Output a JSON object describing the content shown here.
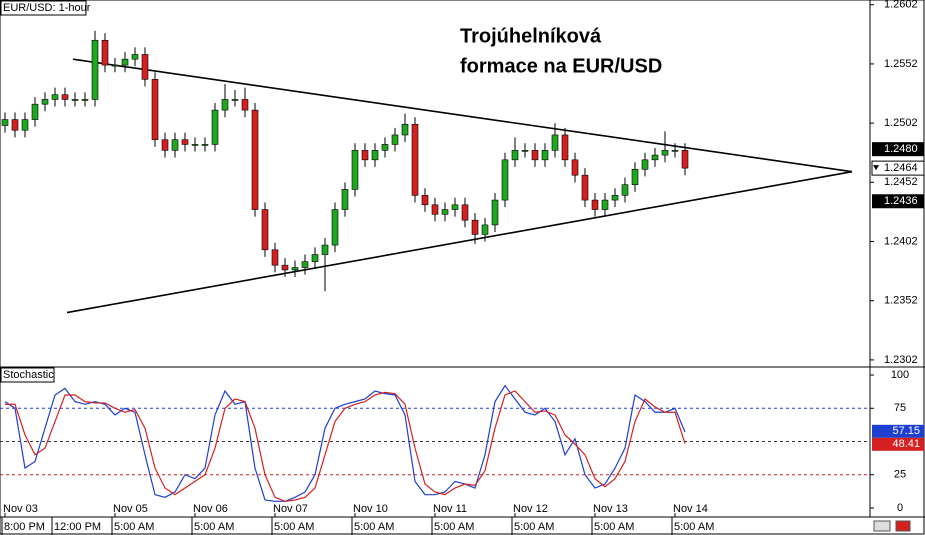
{
  "chart_data": [
    {
      "type": "candlestick",
      "title": "EUR/USD: 1-hour",
      "annotation": [
        "Trojúhelníková",
        "formace na EUR/USD"
      ],
      "xlim": [
        -0.5,
        86.5
      ],
      "ylim": [
        1.2296,
        1.2606
      ],
      "yticks": [
        1.2602,
        1.2552,
        1.2502,
        1.2452,
        1.2402,
        1.2352,
        1.2302
      ],
      "price_labels": [
        {
          "value": 1.248,
          "label": "1.2480"
        },
        {
          "value": 1.2436,
          "label": "1.2436"
        }
      ],
      "up_color": "#1fa81f",
      "down_color": "#d42020",
      "trendline_color": "#000000",
      "trendlines": [
        {
          "x": [
            6.8,
            84.7
          ],
          "y": [
            1.2556,
            1.2461
          ]
        },
        {
          "x": [
            6.2,
            84.7
          ],
          "y": [
            1.2342,
            1.2461
          ]
        }
      ],
      "open": [
        1.25,
        1.2505,
        1.2496,
        1.2505,
        1.2518,
        1.2522,
        1.2526,
        1.2522,
        1.2522,
        1.2522,
        1.2572,
        1.2551,
        1.2551,
        1.2556,
        1.256,
        1.2539,
        1.2488,
        1.2479,
        1.2488,
        1.2484,
        1.2484,
        1.2484,
        1.2513,
        1.2522,
        1.2522,
        1.2513,
        1.2429,
        1.2395,
        1.2382,
        1.2378,
        1.238,
        1.2385,
        1.2391,
        1.2399,
        1.2429,
        1.2446,
        1.2479,
        1.2471,
        1.2479,
        1.2484,
        1.2492,
        1.2501,
        1.2441,
        1.2433,
        1.2425,
        1.2429,
        1.2433,
        1.242,
        1.2408,
        1.2416,
        1.2437,
        1.2471,
        1.2479,
        1.2479,
        1.2471,
        1.2479,
        1.2492,
        1.2471,
        1.2458,
        1.2437,
        1.2429,
        1.2437,
        1.2441,
        1.245,
        1.2463,
        1.2471,
        1.2475,
        1.2479,
        1.2479
      ],
      "high": [
        1.2511,
        1.2511,
        1.2511,
        1.2524,
        1.2528,
        1.2532,
        1.2532,
        1.2528,
        1.2528,
        1.258,
        1.2578,
        1.2557,
        1.2562,
        1.2566,
        1.2566,
        1.2545,
        1.2494,
        1.2494,
        1.2494,
        1.249,
        1.249,
        1.2519,
        1.2535,
        1.253,
        1.2532,
        1.2519,
        1.2435,
        1.2401,
        1.2388,
        1.2386,
        1.2391,
        1.2397,
        1.2405,
        1.2435,
        1.2452,
        1.2485,
        1.2485,
        1.2485,
        1.249,
        1.2498,
        1.251,
        1.2507,
        1.2447,
        1.2439,
        1.2435,
        1.2439,
        1.2439,
        1.2426,
        1.2422,
        1.2443,
        1.2477,
        1.249,
        1.2485,
        1.2485,
        1.2485,
        1.2502,
        1.2498,
        1.2477,
        1.2464,
        1.2443,
        1.2443,
        1.2447,
        1.2456,
        1.2469,
        1.2477,
        1.2481,
        1.2495,
        1.2485,
        1.2485
      ],
      "low": [
        1.2494,
        1.249,
        1.249,
        1.2499,
        1.2512,
        1.2516,
        1.2516,
        1.2516,
        1.2516,
        1.2516,
        1.2545,
        1.2545,
        1.2545,
        1.255,
        1.2533,
        1.2482,
        1.2473,
        1.2473,
        1.2478,
        1.2478,
        1.2478,
        1.2478,
        1.2507,
        1.2516,
        1.2507,
        1.2423,
        1.2389,
        1.2376,
        1.2372,
        1.2372,
        1.2374,
        1.2379,
        1.236,
        1.2393,
        1.2423,
        1.244,
        1.2465,
        1.2465,
        1.2473,
        1.2478,
        1.2486,
        1.2435,
        1.2427,
        1.2419,
        1.2419,
        1.2423,
        1.2414,
        1.24,
        1.2402,
        1.241,
        1.2431,
        1.2465,
        1.2473,
        1.2465,
        1.2465,
        1.2473,
        1.2465,
        1.2452,
        1.2431,
        1.2423,
        1.2423,
        1.2431,
        1.2435,
        1.2444,
        1.2457,
        1.2465,
        1.2469,
        1.2473,
        1.2458
      ],
      "close": [
        1.2505,
        1.2496,
        1.2505,
        1.2518,
        1.2522,
        1.2526,
        1.2522,
        1.2522,
        1.2522,
        1.2572,
        1.2551,
        1.2551,
        1.2556,
        1.256,
        1.2539,
        1.2488,
        1.2479,
        1.2488,
        1.2484,
        1.2484,
        1.2484,
        1.2513,
        1.2522,
        1.2522,
        1.2513,
        1.2429,
        1.2395,
        1.2382,
        1.2378,
        1.238,
        1.2385,
        1.2391,
        1.2399,
        1.2429,
        1.2446,
        1.2479,
        1.2471,
        1.2479,
        1.2484,
        1.2492,
        1.2501,
        1.2441,
        1.2433,
        1.2425,
        1.2429,
        1.2433,
        1.242,
        1.2408,
        1.2416,
        1.2437,
        1.2471,
        1.2479,
        1.2479,
        1.2471,
        1.2479,
        1.2492,
        1.2471,
        1.2458,
        1.2437,
        1.2429,
        1.2437,
        1.2441,
        1.245,
        1.2463,
        1.2471,
        1.2475,
        1.2479,
        1.2479,
        1.2464
      ]
    },
    {
      "type": "line",
      "title": "Stochastic",
      "xlim": [
        -0.5,
        86.5
      ],
      "ylim": [
        -6.8,
        105.3
      ],
      "yticks": [
        100,
        75,
        25,
        0
      ],
      "levels": [
        75,
        50,
        25
      ],
      "level_colors": [
        "#1f3fd0",
        "#333333",
        "#d42020"
      ],
      "xticks": [
        {
          "value": 0,
          "label": "Nov 03"
        },
        {
          "value": 11,
          "label": "Nov 05"
        },
        {
          "value": 19,
          "label": "Nov 06"
        },
        {
          "value": 27,
          "label": "Nov 07"
        },
        {
          "value": 35,
          "label": "Nov 10"
        },
        {
          "value": 43,
          "label": "Nov 11"
        },
        {
          "value": 51,
          "label": "Nov 12"
        },
        {
          "value": 59,
          "label": "Nov 13"
        },
        {
          "value": 67,
          "label": "Nov 14"
        }
      ],
      "xticks_time": [
        {
          "value": 0,
          "label": "8:00 PM"
        },
        {
          "value": 5,
          "label": "12:00 PM"
        },
        {
          "value": 11,
          "label": "5:00 AM"
        },
        {
          "value": 19,
          "label": "5:00 AM"
        },
        {
          "value": 27,
          "label": "5:00 AM"
        },
        {
          "value": 35,
          "label": "5:00 AM"
        },
        {
          "value": 43,
          "label": "5:00 AM"
        },
        {
          "value": 51,
          "label": "5:00 AM"
        },
        {
          "value": 59,
          "label": "5:00 AM"
        },
        {
          "value": 67,
          "label": "5:00 AM"
        }
      ],
      "series": [
        {
          "color": "#1f3fd0",
          "values": [
            80,
            75,
            30,
            35,
            60,
            85,
            90,
            80,
            78,
            80,
            78,
            70,
            75,
            72,
            40,
            10,
            8,
            12,
            25,
            22,
            30,
            70,
            88,
            78,
            80,
            30,
            6,
            5,
            5,
            8,
            12,
            25,
            60,
            75,
            78,
            80,
            82,
            88,
            86,
            85,
            70,
            20,
            10,
            10,
            12,
            20,
            18,
            15,
            40,
            80,
            92,
            82,
            72,
            70,
            75,
            65,
            40,
            52,
            25,
            15,
            18,
            30,
            45,
            85,
            80,
            72,
            72,
            75,
            57.15
          ]
        },
        {
          "color": "#d42020",
          "values": [
            78,
            78,
            55,
            40,
            45,
            65,
            85,
            85,
            80,
            79,
            79,
            75,
            72,
            74,
            60,
            30,
            15,
            10,
            15,
            20,
            25,
            45,
            75,
            82,
            80,
            60,
            25,
            8,
            5,
            6,
            8,
            15,
            40,
            65,
            75,
            78,
            80,
            85,
            87,
            86,
            78,
            45,
            18,
            12,
            10,
            15,
            18,
            17,
            28,
            60,
            85,
            88,
            80,
            72,
            73,
            70,
            55,
            48,
            40,
            22,
            16,
            22,
            35,
            65,
            82,
            76,
            72,
            72,
            48.41
          ]
        }
      ]
    }
  ]
}
